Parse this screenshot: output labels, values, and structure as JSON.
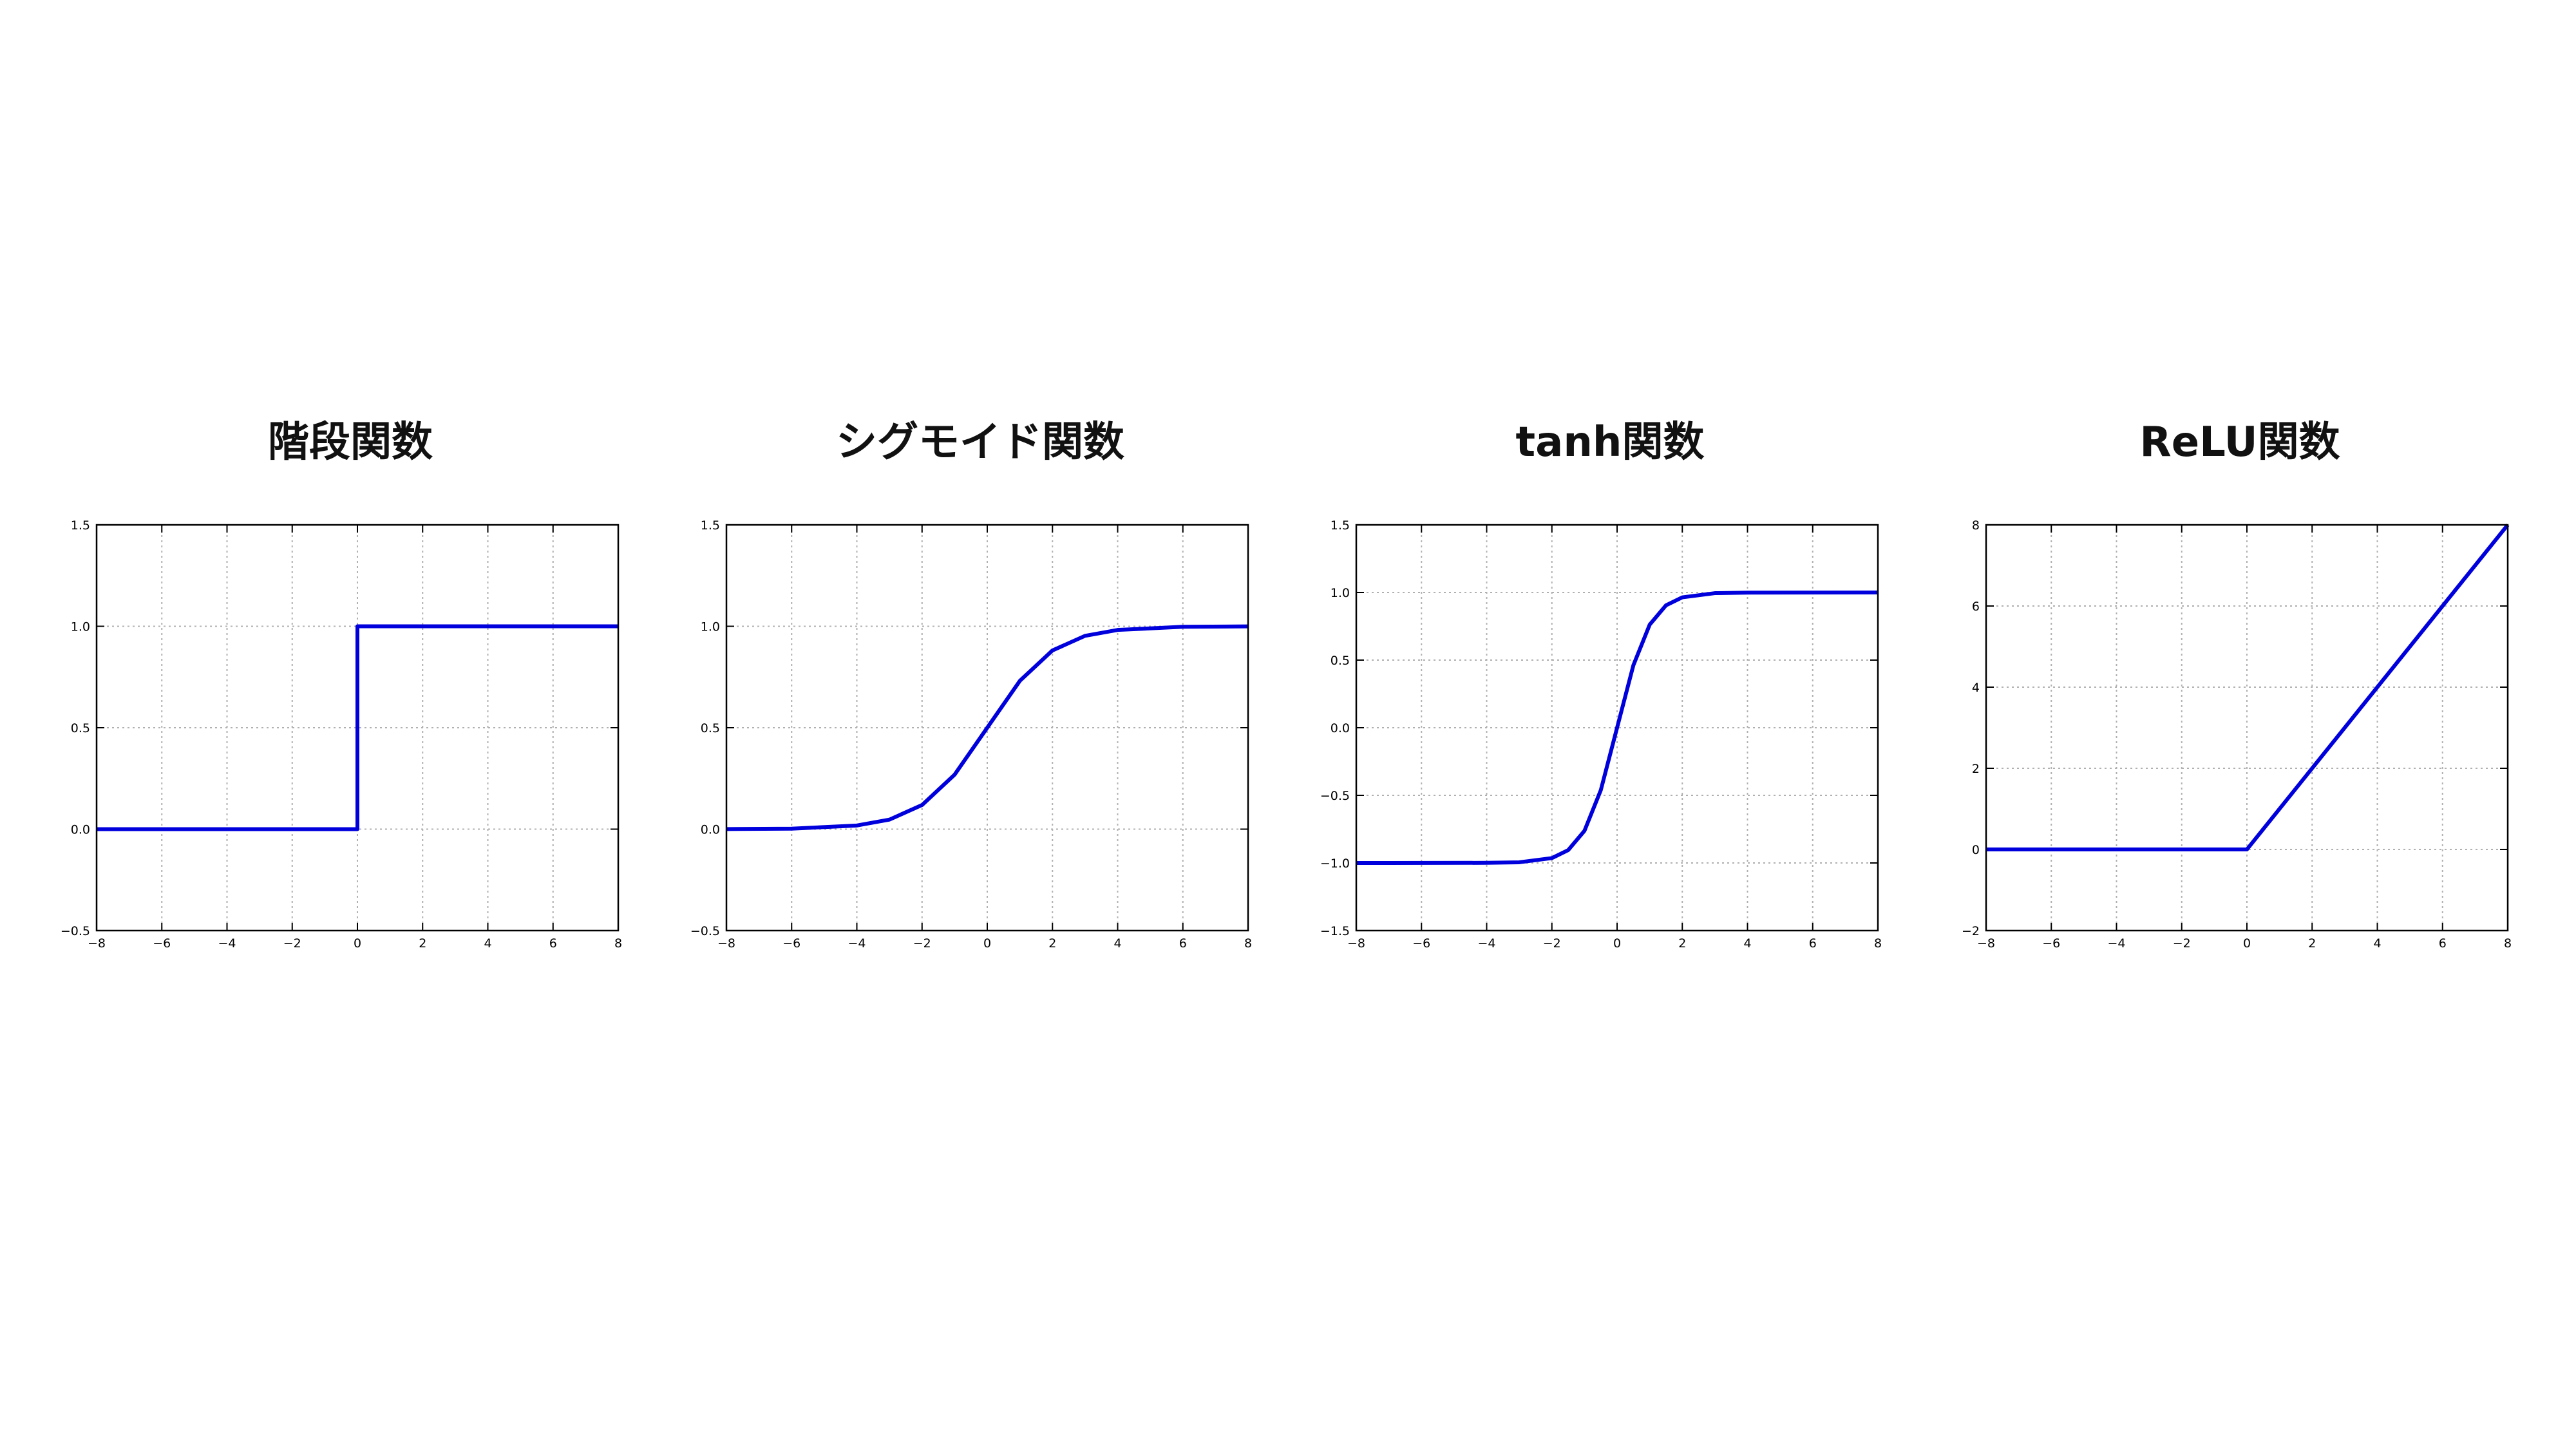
{
  "chart_data": [
    {
      "type": "line",
      "title": "階段関数",
      "function": "step",
      "xlabel": "",
      "ylabel": "",
      "xlim": [
        -8,
        8
      ],
      "ylim": [
        -0.5,
        1.5
      ],
      "xticks": [
        -8,
        -6,
        -4,
        -2,
        0,
        2,
        4,
        6,
        8
      ],
      "xtick_labels": [
        "−8",
        "−6",
        "−4",
        "−2",
        "0",
        "2",
        "4",
        "6",
        "8"
      ],
      "yticks": [
        -0.5,
        0.0,
        0.5,
        1.0,
        1.5
      ],
      "ytick_labels": [
        "−0.5",
        "0.0",
        "0.5",
        "1.0",
        "1.5"
      ],
      "grid": true,
      "series": [
        {
          "color": "#0000dd",
          "x": [
            -8,
            0,
            0,
            8
          ],
          "y": [
            0,
            0,
            1,
            1
          ]
        }
      ]
    },
    {
      "type": "line",
      "title": "シグモイド関数",
      "function": "sigmoid",
      "xlabel": "",
      "ylabel": "",
      "xlim": [
        -8,
        8
      ],
      "ylim": [
        -0.5,
        1.5
      ],
      "xticks": [
        -8,
        -6,
        -4,
        -2,
        0,
        2,
        4,
        6,
        8
      ],
      "xtick_labels": [
        "−8",
        "−6",
        "−4",
        "−2",
        "0",
        "2",
        "4",
        "6",
        "8"
      ],
      "yticks": [
        -0.5,
        0.0,
        0.5,
        1.0,
        1.5
      ],
      "ytick_labels": [
        "−0.5",
        "0.0",
        "0.5",
        "1.0",
        "1.5"
      ],
      "grid": true,
      "series": [
        {
          "color": "#0000dd",
          "x": [
            -8,
            -6,
            -4,
            -3,
            -2,
            -1,
            0,
            1,
            2,
            3,
            4,
            6,
            8
          ],
          "y": [
            0.0003,
            0.0025,
            0.018,
            0.047,
            0.119,
            0.269,
            0.5,
            0.731,
            0.881,
            0.953,
            0.982,
            0.9975,
            0.9997
          ]
        }
      ]
    },
    {
      "type": "line",
      "title": "tanh関数",
      "function": "tanh",
      "xlabel": "",
      "ylabel": "",
      "xlim": [
        -8,
        8
      ],
      "ylim": [
        -1.5,
        1.5
      ],
      "xticks": [
        -8,
        -6,
        -4,
        -2,
        0,
        2,
        4,
        6,
        8
      ],
      "xtick_labels": [
        "−8",
        "−6",
        "−4",
        "−2",
        "0",
        "2",
        "4",
        "6",
        "8"
      ],
      "yticks": [
        -1.5,
        -1.0,
        -0.5,
        0.0,
        0.5,
        1.0,
        1.5
      ],
      "ytick_labels": [
        "−1.5",
        "−1.0",
        "−0.5",
        "0.0",
        "0.5",
        "1.0",
        "1.5"
      ],
      "grid": true,
      "series": [
        {
          "color": "#0000dd",
          "x": [
            -8,
            -4,
            -3,
            -2,
            -1.5,
            -1,
            -0.5,
            0,
            0.5,
            1,
            1.5,
            2,
            3,
            4,
            8
          ],
          "y": [
            -1.0,
            -0.999,
            -0.995,
            -0.964,
            -0.905,
            -0.762,
            -0.462,
            0.0,
            0.462,
            0.762,
            0.905,
            0.964,
            0.995,
            0.999,
            1.0
          ]
        }
      ]
    },
    {
      "type": "line",
      "title": "ReLU関数",
      "function": "relu",
      "xlabel": "",
      "ylabel": "",
      "xlim": [
        -8,
        8
      ],
      "ylim": [
        -2,
        8
      ],
      "xticks": [
        -8,
        -6,
        -4,
        -2,
        0,
        2,
        4,
        6,
        8
      ],
      "xtick_labels": [
        "−8",
        "−6",
        "−4",
        "−2",
        "0",
        "2",
        "4",
        "6",
        "8"
      ],
      "yticks": [
        -2,
        0,
        2,
        4,
        6,
        8
      ],
      "ytick_labels": [
        "−2",
        "0",
        "2",
        "4",
        "6",
        "8"
      ],
      "grid": true,
      "series": [
        {
          "color": "#0000dd",
          "x": [
            -8,
            0,
            8
          ],
          "y": [
            0,
            0,
            8
          ]
        }
      ]
    }
  ]
}
